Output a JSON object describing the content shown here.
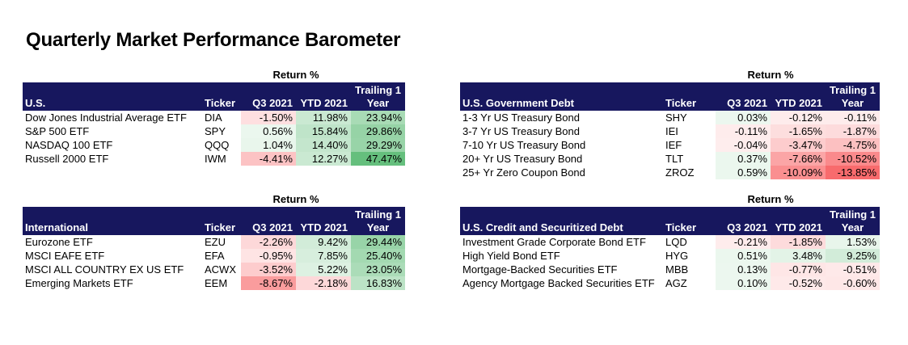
{
  "title": "Quarterly Market Performance Barometer",
  "return_label": "Return %",
  "columns": {
    "ticker": "Ticker",
    "q3": "Q3 2021",
    "ytd": "YTD 2021",
    "trailing_line1": "Trailing 1",
    "trailing_line2": "Year"
  },
  "tables": {
    "us": {
      "heading": "U.S.",
      "rows": [
        {
          "name": "Dow Jones Industrial Average ETF",
          "ticker": "DIA",
          "q3": "-1.50%",
          "ytd": "11.98%",
          "trailing": "23.94%"
        },
        {
          "name": "S&P 500 ETF",
          "ticker": "SPY",
          "q3": "0.56%",
          "ytd": "15.84%",
          "trailing": "29.86%"
        },
        {
          "name": "NASDAQ 100 ETF",
          "ticker": "QQQ",
          "q3": "1.04%",
          "ytd": "14.40%",
          "trailing": "29.29%"
        },
        {
          "name": "Russell 2000 ETF",
          "ticker": "IWM",
          "q3": "-4.41%",
          "ytd": "12.27%",
          "trailing": "47.47%"
        }
      ]
    },
    "international": {
      "heading": "International",
      "rows": [
        {
          "name": "Eurozone ETF",
          "ticker": "EZU",
          "q3": "-2.26%",
          "ytd": "9.42%",
          "trailing": "29.44%"
        },
        {
          "name": "MSCI EAFE ETF",
          "ticker": "EFA",
          "q3": "-0.95%",
          "ytd": "7.85%",
          "trailing": "25.40%"
        },
        {
          "name": "MSCI ALL COUNTRY EX US ETF",
          "ticker": "ACWX",
          "q3": "-3.52%",
          "ytd": "5.22%",
          "trailing": "23.05%"
        },
        {
          "name": "Emerging Markets ETF",
          "ticker": "EEM",
          "q3": "-8.67%",
          "ytd": "-2.18%",
          "trailing": "16.83%"
        }
      ]
    },
    "gov": {
      "heading": "U.S. Government Debt",
      "rows": [
        {
          "name": "1-3 Yr US Treasury Bond",
          "ticker": "SHY",
          "q3": "0.03%",
          "ytd": "-0.12%",
          "trailing": "-0.11%"
        },
        {
          "name": "3-7 Yr US Treasury Bond",
          "ticker": "IEI",
          "q3": "-0.11%",
          "ytd": "-1.65%",
          "trailing": "-1.87%"
        },
        {
          "name": "7-10 Yr US Treasury Bond",
          "ticker": "IEF",
          "q3": "-0.04%",
          "ytd": "-3.47%",
          "trailing": "-4.75%"
        },
        {
          "name": "20+ Yr US Treasury Bond",
          "ticker": "TLT",
          "q3": "0.37%",
          "ytd": "-7.66%",
          "trailing": "-10.52%"
        },
        {
          "name": "25+ Yr Zero Coupon Bond",
          "ticker": "ZROZ",
          "q3": "0.59%",
          "ytd": "-10.09%",
          "trailing": "-13.85%"
        }
      ]
    },
    "credit": {
      "heading": "U.S. Credit and Securitized Debt",
      "rows": [
        {
          "name": "Investment Grade Corporate Bond ETF",
          "ticker": "LQD",
          "q3": "-0.21%",
          "ytd": "-1.85%",
          "trailing": "1.53%"
        },
        {
          "name": "High Yield Bond ETF",
          "ticker": "HYG",
          "q3": "0.51%",
          "ytd": "3.48%",
          "trailing": "9.25%"
        },
        {
          "name": "Mortgage-Backed Securities ETF",
          "ticker": "MBB",
          "q3": "0.13%",
          "ytd": "-0.77%",
          "trailing": "-0.51%"
        },
        {
          "name": "Agency Mortgage Backed Securities ETF",
          "ticker": "AGZ",
          "q3": "0.10%",
          "ytd": "-0.52%",
          "trailing": "-0.60%"
        }
      ]
    }
  },
  "colors": {
    "header_bg": "#17175e",
    "positive": "#63be7b",
    "negative": "#f8696b"
  }
}
